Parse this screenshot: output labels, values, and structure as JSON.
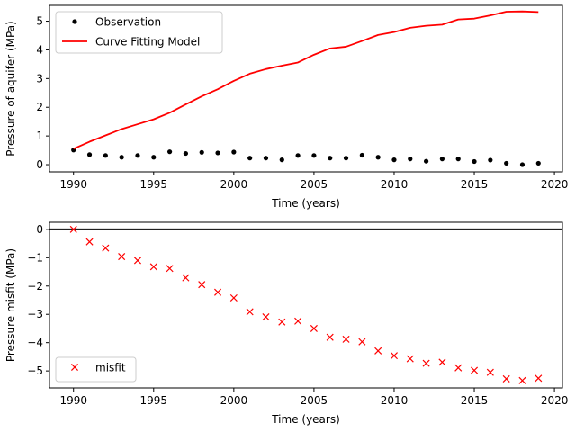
{
  "chart_data": [
    {
      "type": "line",
      "title": "",
      "xlabel": "Time (years)",
      "ylabel": "Pressure of aquifer (MPa)",
      "xlim": [
        1988.5,
        2020.5
      ],
      "ylim": [
        -0.25,
        5.55
      ],
      "xticks": [
        1990,
        1995,
        2000,
        2005,
        2010,
        2015,
        2020
      ],
      "yticks": [
        0,
        1,
        2,
        3,
        4,
        5
      ],
      "legend_position": "top-left",
      "series": [
        {
          "name": "Observation",
          "kind": "scatter",
          "marker": "dot",
          "color": "#000000",
          "x": [
            1990,
            1991,
            1992,
            1993,
            1994,
            1995,
            1996,
            1997,
            1998,
            1999,
            2000,
            2001,
            2002,
            2003,
            2004,
            2005,
            2006,
            2007,
            2008,
            2009,
            2010,
            2011,
            2012,
            2013,
            2014,
            2015,
            2016,
            2017,
            2018,
            2019
          ],
          "values": [
            0.51,
            0.35,
            0.32,
            0.26,
            0.32,
            0.26,
            0.45,
            0.39,
            0.43,
            0.41,
            0.44,
            0.23,
            0.23,
            0.17,
            0.32,
            0.32,
            0.23,
            0.23,
            0.33,
            0.26,
            0.17,
            0.2,
            0.12,
            0.2,
            0.2,
            0.11,
            0.16,
            0.05,
            0.0,
            0.05
          ]
        },
        {
          "name": "Curve Fitting Model",
          "kind": "line",
          "color": "#ff0000",
          "x": [
            1990,
            1991,
            1992,
            1993,
            1994,
            1995,
            1996,
            1997,
            1998,
            1999,
            2000,
            2001,
            2002,
            2003,
            2004,
            2005,
            2006,
            2007,
            2008,
            2009,
            2010,
            2011,
            2012,
            2013,
            2014,
            2015,
            2016,
            2017,
            2018,
            2019
          ],
          "values": [
            0.55,
            0.8,
            1.02,
            1.24,
            1.41,
            1.58,
            1.81,
            2.1,
            2.38,
            2.63,
            2.92,
            3.17,
            3.33,
            3.45,
            3.56,
            3.83,
            4.05,
            4.11,
            4.31,
            4.52,
            4.62,
            4.77,
            4.84,
            4.88,
            5.06,
            5.09,
            5.2,
            5.33,
            5.34,
            5.32
          ]
        }
      ]
    },
    {
      "type": "scatter",
      "title": "",
      "xlabel": "Time (years)",
      "ylabel": "Pressure misfit (MPa)",
      "xlim": [
        1988.5,
        2020.5
      ],
      "ylim": [
        -5.6,
        0.25
      ],
      "xticks": [
        1990,
        1995,
        2000,
        2005,
        2010,
        2015,
        2020
      ],
      "yticks": [
        0,
        -1,
        -2,
        -3,
        -4,
        -5
      ],
      "reference_line": 0,
      "legend_position": "bottom-left",
      "series": [
        {
          "name": "misfit",
          "kind": "scatter",
          "marker": "x",
          "color": "#ff0000",
          "x": [
            1990,
            1991,
            1992,
            1993,
            1994,
            1995,
            1996,
            1997,
            1998,
            1999,
            2000,
            2001,
            2002,
            2003,
            2004,
            2005,
            2006,
            2007,
            2008,
            2009,
            2010,
            2011,
            2012,
            2013,
            2014,
            2015,
            2016,
            2017,
            2018,
            2019
          ],
          "values": [
            0.0,
            -0.44,
            -0.66,
            -0.96,
            -1.1,
            -1.32,
            -1.38,
            -1.71,
            -1.95,
            -2.22,
            -2.42,
            -2.91,
            -3.09,
            -3.27,
            -3.24,
            -3.5,
            -3.81,
            -3.88,
            -3.97,
            -4.29,
            -4.46,
            -4.57,
            -4.73,
            -4.69,
            -4.89,
            -4.98,
            -5.05,
            -5.28,
            -5.34,
            -5.26
          ]
        }
      ]
    }
  ]
}
